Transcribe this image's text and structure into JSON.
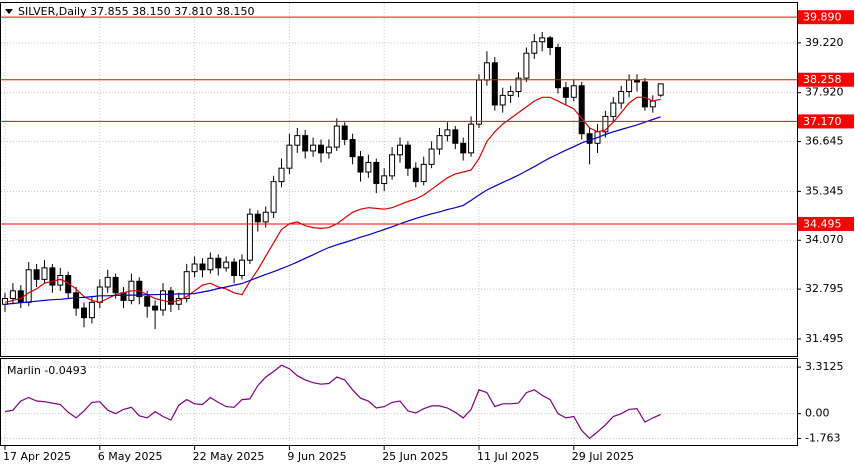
{
  "chart_data": [
    {
      "type": "candlestick",
      "title": "SILVER,Daily  37.855 38.150 37.810 38.150",
      "categories": [
        "17 Apr 2025",
        null,
        null,
        null,
        null,
        null,
        null,
        null,
        null,
        null,
        null,
        null,
        "6 May 2025",
        null,
        null,
        null,
        null,
        null,
        null,
        null,
        null,
        null,
        null,
        null,
        "22 May 2025",
        null,
        null,
        null,
        null,
        null,
        null,
        null,
        null,
        null,
        null,
        null,
        "9 Jun 2025",
        null,
        null,
        null,
        null,
        null,
        null,
        null,
        null,
        null,
        null,
        null,
        "25 Jun 2025",
        null,
        null,
        null,
        null,
        null,
        null,
        null,
        null,
        null,
        null,
        null,
        "11 Jul 2025",
        null,
        null,
        null,
        null,
        null,
        null,
        null,
        null,
        null,
        null,
        null,
        "29 Jul 2025",
        null,
        null,
        null,
        null,
        null,
        null,
        null,
        null,
        null,
        null,
        null
      ],
      "open": [
        32.4,
        32.55,
        32.75,
        32.45,
        33.3,
        33.05,
        33.35,
        32.9,
        33.15,
        32.7,
        32.3,
        32.05,
        32.45,
        32.85,
        33.1,
        32.7,
        32.5,
        33.0,
        32.6,
        32.35,
        32.25,
        32.75,
        32.4,
        32.55,
        33.25,
        33.45,
        33.3,
        33.6,
        33.35,
        33.5,
        33.15,
        33.55,
        34.75,
        34.55,
        34.8,
        35.6,
        35.95,
        36.55,
        36.8,
        36.4,
        36.55,
        36.35,
        36.5,
        37.05,
        36.7,
        36.25,
        35.85,
        36.1,
        35.55,
        35.75,
        36.3,
        36.55,
        35.95,
        35.6,
        36.05,
        36.45,
        36.8,
        36.95,
        36.6,
        36.35,
        37.1,
        38.25,
        38.7,
        37.6,
        37.85,
        37.95,
        38.3,
        38.95,
        39.25,
        39.35,
        39.1,
        38.05,
        37.8,
        38.1,
        36.85,
        36.6,
        36.9,
        37.3,
        37.65,
        37.95,
        38.25,
        38.2,
        37.55,
        37.855
      ],
      "high": [
        32.7,
        32.95,
        32.9,
        33.5,
        33.45,
        33.55,
        33.45,
        33.35,
        33.25,
        32.85,
        32.45,
        32.6,
        33.05,
        33.3,
        33.2,
        32.85,
        33.2,
        33.1,
        32.75,
        32.5,
        32.95,
        32.85,
        32.7,
        33.45,
        33.65,
        33.6,
        33.75,
        33.7,
        33.65,
        33.6,
        33.7,
        34.9,
        34.85,
        34.95,
        35.75,
        36.2,
        36.85,
        37.0,
        36.95,
        36.75,
        36.7,
        36.7,
        37.25,
        37.15,
        36.85,
        36.4,
        36.3,
        36.2,
        35.95,
        36.5,
        36.75,
        36.65,
        36.1,
        36.25,
        36.65,
        37.0,
        37.15,
        37.05,
        36.75,
        37.3,
        38.4,
        39.0,
        38.85,
        38.05,
        38.1,
        38.45,
        39.1,
        39.45,
        39.5,
        39.4,
        39.2,
        38.2,
        38.25,
        38.2,
        37.0,
        37.1,
        37.45,
        37.8,
        38.1,
        38.4,
        38.4,
        38.3,
        37.85,
        38.15
      ],
      "low": [
        32.2,
        32.4,
        32.3,
        32.35,
        32.85,
        32.95,
        32.7,
        32.75,
        32.55,
        32.1,
        31.8,
        31.9,
        32.3,
        32.7,
        32.55,
        32.3,
        32.4,
        32.4,
        32.05,
        31.75,
        32.1,
        32.2,
        32.25,
        32.45,
        33.1,
        33.1,
        33.2,
        33.15,
        33.25,
        32.95,
        33.05,
        33.45,
        34.3,
        34.4,
        34.65,
        35.45,
        35.8,
        36.35,
        36.2,
        36.25,
        36.1,
        36.2,
        36.4,
        36.55,
        36.05,
        35.6,
        35.7,
        35.3,
        35.35,
        35.65,
        36.1,
        35.75,
        35.45,
        35.5,
        35.95,
        36.3,
        36.65,
        36.45,
        36.15,
        36.25,
        37.0,
        38.1,
        37.45,
        37.4,
        37.65,
        37.8,
        38.2,
        38.8,
        39.0,
        38.9,
        37.9,
        37.6,
        37.7,
        36.7,
        36.05,
        36.35,
        36.75,
        37.15,
        37.5,
        37.8,
        37.95,
        37.45,
        37.4,
        37.81
      ],
      "close": [
        32.55,
        32.75,
        32.45,
        33.3,
        33.05,
        33.35,
        32.9,
        33.15,
        32.7,
        32.3,
        32.05,
        32.45,
        32.85,
        33.1,
        32.7,
        32.5,
        33.0,
        32.6,
        32.35,
        32.25,
        32.75,
        32.4,
        32.55,
        33.25,
        33.45,
        33.3,
        33.6,
        33.35,
        33.5,
        33.15,
        33.55,
        34.75,
        34.55,
        34.8,
        35.6,
        35.95,
        36.55,
        36.8,
        36.4,
        36.55,
        36.35,
        36.5,
        37.05,
        36.7,
        36.25,
        35.85,
        36.1,
        35.55,
        35.75,
        36.3,
        36.55,
        35.95,
        35.6,
        36.05,
        36.45,
        36.8,
        36.95,
        36.6,
        36.35,
        37.1,
        38.25,
        38.7,
        37.6,
        37.85,
        37.95,
        38.3,
        38.95,
        39.25,
        39.35,
        39.1,
        38.05,
        37.8,
        38.1,
        36.85,
        36.6,
        36.9,
        37.3,
        37.65,
        37.95,
        38.25,
        38.2,
        37.55,
        37.7,
        38.15
      ],
      "bull_color": "#ffffff",
      "bear_color": "#000000",
      "series": [
        {
          "color": "#e00000",
          "values": [
            32.45,
            32.5,
            32.55,
            32.7,
            32.8,
            32.95,
            33.0,
            33.05,
            32.95,
            32.8,
            32.6,
            32.5,
            32.45,
            32.55,
            32.65,
            32.7,
            32.75,
            32.75,
            32.65,
            32.55,
            32.5,
            32.45,
            32.5,
            32.6,
            32.75,
            32.9,
            32.95,
            32.85,
            32.8,
            32.7,
            32.65,
            33.0,
            33.3,
            33.65,
            34.0,
            34.35,
            34.5,
            34.55,
            34.45,
            34.4,
            34.38,
            34.4,
            34.5,
            34.65,
            34.8,
            34.88,
            34.92,
            34.9,
            34.88,
            34.92,
            35.0,
            35.08,
            35.15,
            35.25,
            35.4,
            35.55,
            35.7,
            35.8,
            35.85,
            35.9,
            36.2,
            36.65,
            36.9,
            37.1,
            37.25,
            37.4,
            37.55,
            37.7,
            37.8,
            37.8,
            37.7,
            37.6,
            37.5,
            37.25,
            37.0,
            36.9,
            36.95,
            37.15,
            37.4,
            37.65,
            37.8,
            37.8,
            37.7,
            37.75
          ]
        },
        {
          "color": "#0000cc",
          "values": [
            32.4,
            32.42,
            32.44,
            32.46,
            32.48,
            32.5,
            32.52,
            32.53,
            32.55,
            32.57,
            32.58,
            32.6,
            32.62,
            32.62,
            32.63,
            32.63,
            32.64,
            32.64,
            32.65,
            32.65,
            32.66,
            32.66,
            32.67,
            32.67,
            32.68,
            32.72,
            32.76,
            32.81,
            32.85,
            32.9,
            32.94,
            33.02,
            33.1,
            33.18,
            33.25,
            33.33,
            33.41,
            33.5,
            33.6,
            33.69,
            33.79,
            33.88,
            33.95,
            34.01,
            34.08,
            34.15,
            34.21,
            34.28,
            34.35,
            34.42,
            34.5,
            34.57,
            34.64,
            34.7,
            34.76,
            34.81,
            34.87,
            34.92,
            34.98,
            35.11,
            35.25,
            35.38,
            35.48,
            35.58,
            35.67,
            35.77,
            35.88,
            35.99,
            36.11,
            36.22,
            36.32,
            36.42,
            36.51,
            36.61,
            36.68,
            36.75,
            36.83,
            36.9,
            36.96,
            37.02,
            37.08,
            37.15,
            37.22,
            37.29
          ]
        }
      ],
      "levels": [
        {
          "value": 39.89,
          "label": "39.890"
        },
        {
          "value": 38.258,
          "label": "38.258"
        },
        {
          "value": 37.17,
          "label": "37.170"
        },
        {
          "value": 34.495,
          "label": "34.495"
        }
      ],
      "level_color": "#ff0000",
      "ylim": [
        31.05,
        40.26
      ],
      "yticks": [
        {
          "value": 39.22,
          "label": "39.220"
        },
        {
          "value": 37.92,
          "label": "37.920"
        },
        36.645,
        35.345,
        {
          "value": 34.07,
          "label": "34.070"
        },
        32.795,
        31.495
      ],
      "grid": true
    },
    {
      "type": "line",
      "title": "Marlin -0.0493",
      "series": [
        {
          "color": "#800080",
          "values": [
            0.15,
            0.25,
            0.9,
            1.15,
            0.9,
            0.85,
            0.75,
            0.65,
            0.1,
            -0.3,
            0.2,
            0.8,
            0.85,
            0.25,
            0.0,
            0.3,
            0.45,
            -0.15,
            -0.3,
            0.15,
            -0.2,
            -0.45,
            0.6,
            1.0,
            0.7,
            0.65,
            1.15,
            0.8,
            0.5,
            0.45,
            1.0,
            1.05,
            2.0,
            2.6,
            3.0,
            3.45,
            3.2,
            2.7,
            2.4,
            2.2,
            2.1,
            2.15,
            2.6,
            2.4,
            1.7,
            1.1,
            0.9,
            0.4,
            0.5,
            0.8,
            0.9,
            0.2,
            0.05,
            0.35,
            0.55,
            0.55,
            0.4,
            0.1,
            -0.3,
            0.3,
            1.7,
            1.5,
            0.5,
            0.7,
            0.7,
            0.75,
            1.5,
            1.7,
            1.3,
            1.0,
            0.0,
            -0.3,
            -0.2,
            -1.2,
            -1.75,
            -1.3,
            -0.8,
            -0.2,
            0.0,
            0.3,
            0.35,
            -0.6,
            -0.3,
            -0.0493
          ]
        }
      ],
      "ylim": [
        -2.23,
        3.89
      ],
      "yticks": [
        3.3125,
        {
          "value": 0,
          "label": "0.00"
        },
        -1.763
      ],
      "grid": true
    }
  ]
}
